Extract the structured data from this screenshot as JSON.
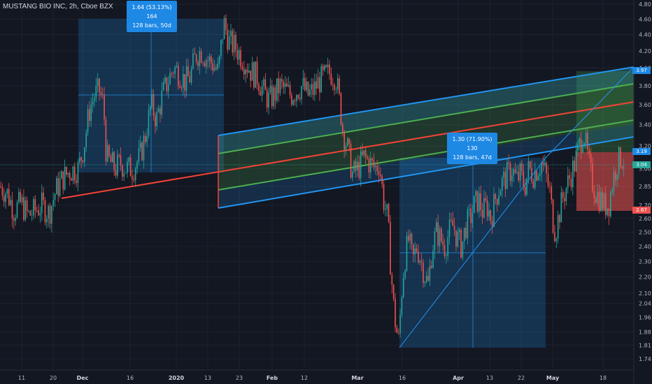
{
  "header": {
    "title": "MUSTANG BIO INC, 2h, Cboe BZX"
  },
  "colors": {
    "background": "#131722",
    "up": "#26a69a",
    "down": "#ef5350",
    "channel_outer": "#2196f3",
    "channel_mid": "#4caf50",
    "channel_center": "#f44336",
    "measure_box": "#1e88e5"
  },
  "measures": [
    {
      "line1": "1.64 (53.13%) 164",
      "line2": "128 bars, 50d"
    },
    {
      "line1": "1.30 (71.90%) 130",
      "line2": "128 bars, 47d"
    }
  ],
  "price_tags": [
    {
      "value": "3.97",
      "color": "#1e88e5"
    },
    {
      "value": "3.19",
      "color": "#1e88e5"
    },
    {
      "value": "3.04",
      "color": "#26a69a"
    },
    {
      "value": "2.67",
      "color": "#ef5350"
    }
  ],
  "chart_data": {
    "type": "candlestick",
    "title": "MUSTANG BIO INC, 2h, Cboe BZX",
    "y_axis": {
      "scale": "log",
      "ticks": [
        "4.80",
        "4.60",
        "4.40",
        "4.20",
        "4.00",
        "3.80",
        "3.60",
        "3.40",
        "3.20",
        "3.00",
        "2.85",
        "2.70",
        "2.60",
        "2.50",
        "2.40",
        "2.30",
        "2.20",
        "2.10",
        "2.04",
        "1.96",
        "1.88",
        "1.81",
        "1.74"
      ]
    },
    "x_axis": {
      "ticks": [
        "11",
        "20",
        "Dec",
        "16",
        "2020",
        "13",
        "23",
        "Feb",
        "12",
        "Mar",
        "16",
        "Apr",
        "13",
        "22",
        "May",
        "18"
      ]
    },
    "price_path": [
      [
        0,
        2.85
      ],
      [
        10,
        2.8
      ],
      [
        20,
        2.66
      ],
      [
        30,
        2.72
      ],
      [
        40,
        2.62
      ],
      [
        50,
        2.66
      ],
      [
        60,
        2.7
      ],
      [
        70,
        2.64
      ],
      [
        80,
        2.82
      ],
      [
        90,
        2.92
      ],
      [
        100,
        2.98
      ],
      [
        112,
        3.0
      ],
      [
        120,
        3.2
      ],
      [
        128,
        3.55
      ],
      [
        135,
        3.7
      ],
      [
        142,
        3.75
      ],
      [
        148,
        3.6
      ],
      [
        152,
        3.1
      ],
      [
        158,
        3.05
      ],
      [
        165,
        3.0
      ],
      [
        172,
        3.05
      ],
      [
        180,
        3.0
      ],
      [
        190,
        3.0
      ],
      [
        200,
        3.1
      ],
      [
        208,
        3.3
      ],
      [
        216,
        3.6
      ],
      [
        224,
        3.45
      ],
      [
        232,
        3.7
      ],
      [
        240,
        3.85
      ],
      [
        248,
        4.0
      ],
      [
        256,
        3.95
      ],
      [
        264,
        3.85
      ],
      [
        272,
        3.9
      ],
      [
        280,
        4.15
      ],
      [
        288,
        4.2
      ],
      [
        296,
        4.1
      ],
      [
        304,
        4.05
      ],
      [
        312,
        3.95
      ],
      [
        320,
        4.55
      ],
      [
        328,
        4.3
      ],
      [
        336,
        4.25
      ],
      [
        344,
        4.15
      ],
      [
        352,
        4.05
      ],
      [
        360,
        3.95
      ],
      [
        368,
        3.9
      ],
      [
        376,
        3.75
      ],
      [
        384,
        3.65
      ],
      [
        392,
        3.7
      ],
      [
        400,
        3.8
      ],
      [
        408,
        3.75
      ],
      [
        416,
        3.7
      ],
      [
        424,
        3.75
      ],
      [
        432,
        3.8
      ],
      [
        440,
        3.7
      ],
      [
        448,
        3.75
      ],
      [
        456,
        3.85
      ],
      [
        464,
        3.9
      ],
      [
        472,
        3.95
      ],
      [
        480,
        3.9
      ],
      [
        486,
        3.6
      ],
      [
        490,
        3.35
      ],
      [
        496,
        3.2
      ],
      [
        504,
        2.95
      ],
      [
        512,
        3.0
      ],
      [
        520,
        3.1
      ],
      [
        528,
        3.05
      ],
      [
        536,
        3.0
      ],
      [
        542,
        3.05
      ],
      [
        548,
        2.75
      ],
      [
        554,
        2.6
      ],
      [
        558,
        2.3
      ],
      [
        562,
        2.05
      ],
      [
        566,
        1.9
      ],
      [
        570,
        1.83
      ],
      [
        574,
        2.1
      ],
      [
        578,
        2.3
      ],
      [
        584,
        2.45
      ],
      [
        590,
        2.3
      ],
      [
        596,
        2.4
      ],
      [
        602,
        2.3
      ],
      [
        608,
        2.2
      ],
      [
        612,
        2.15
      ],
      [
        618,
        2.4
      ],
      [
        624,
        2.5
      ],
      [
        630,
        2.45
      ],
      [
        636,
        2.4
      ],
      [
        642,
        2.5
      ],
      [
        648,
        2.55
      ],
      [
        654,
        2.45
      ],
      [
        660,
        2.4
      ],
      [
        666,
        2.55
      ],
      [
        672,
        2.6
      ],
      [
        678,
        2.7
      ],
      [
        684,
        2.75
      ],
      [
        690,
        2.65
      ],
      [
        696,
        2.7
      ],
      [
        702,
        2.6
      ],
      [
        708,
        2.75
      ],
      [
        714,
        2.85
      ],
      [
        720,
        2.9
      ],
      [
        726,
        2.95
      ],
      [
        732,
        3.0
      ],
      [
        738,
        2.9
      ],
      [
        744,
        2.95
      ],
      [
        750,
        2.85
      ],
      [
        756,
        3.0
      ],
      [
        762,
        2.95
      ],
      [
        768,
        3.0
      ],
      [
        774,
        3.05
      ],
      [
        780,
        2.95
      ],
      [
        786,
        2.8
      ],
      [
        790,
        2.6
      ],
      [
        794,
        2.5
      ],
      [
        798,
        2.6
      ],
      [
        804,
        2.75
      ],
      [
        810,
        2.85
      ],
      [
        816,
        2.95
      ],
      [
        822,
        3.05
      ],
      [
        828,
        3.2
      ],
      [
        834,
        3.35
      ],
      [
        840,
        3.1
      ],
      [
        846,
        2.9
      ],
      [
        852,
        2.8
      ],
      [
        858,
        2.75
      ],
      [
        864,
        2.7
      ],
      [
        870,
        2.7
      ],
      [
        876,
        2.9
      ],
      [
        882,
        3.05
      ],
      [
        888,
        3.1
      ],
      [
        894,
        3.05
      ]
    ]
  }
}
